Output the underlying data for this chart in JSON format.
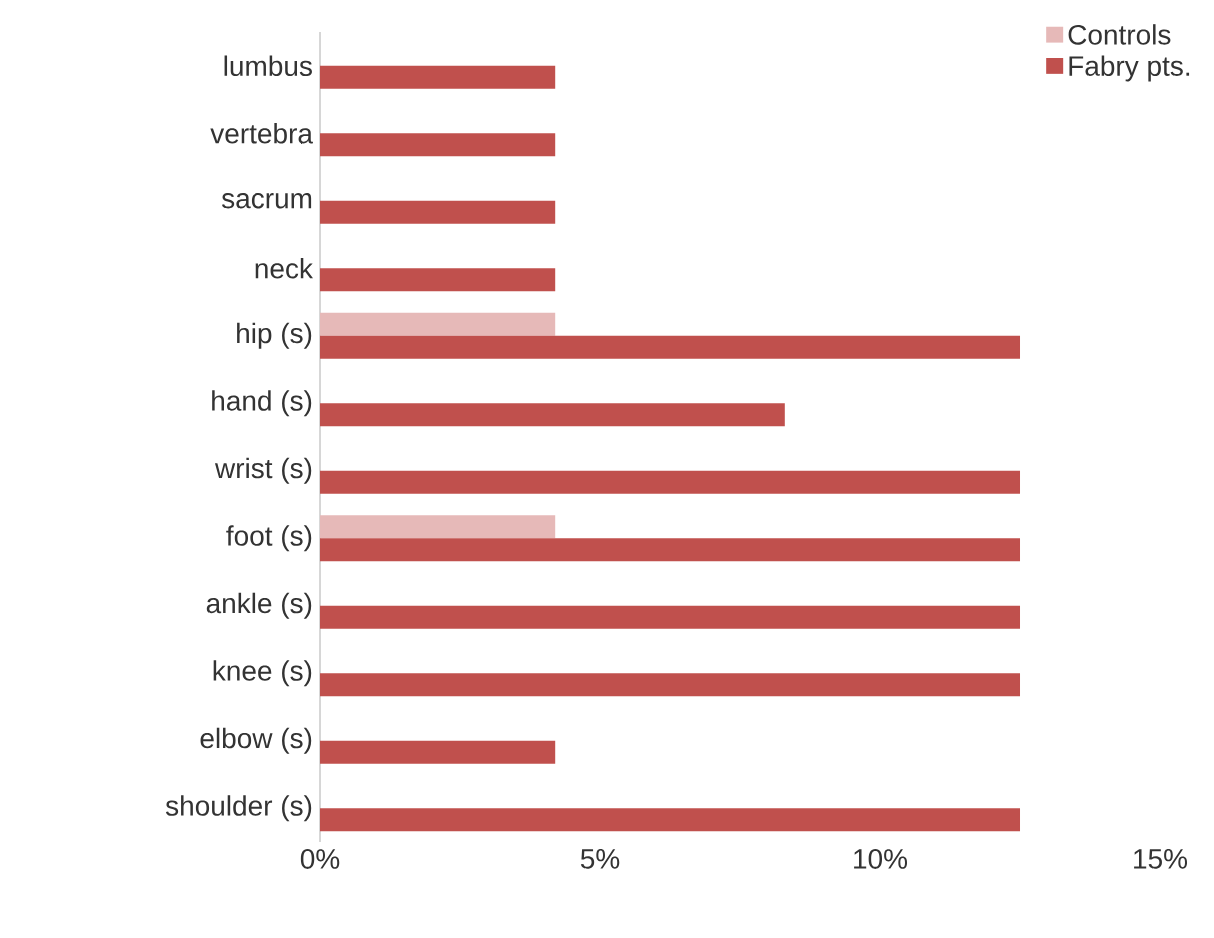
{
  "chart_data": {
    "type": "bar",
    "orientation": "horizontal",
    "categories": [
      "lumbus",
      "vertebra",
      "sacrum",
      "neck",
      "hip (s)",
      "hand (s)",
      "wrist (s)",
      "foot (s)",
      "ankle (s)",
      "knee (s)",
      "elbow (s)",
      "shoulder (s)"
    ],
    "series": [
      {
        "name": "Controls",
        "color": "#e6b9b8",
        "values": [
          null,
          null,
          null,
          null,
          4.2,
          null,
          null,
          4.2,
          null,
          null,
          null,
          null
        ]
      },
      {
        "name": "Fabry pts.",
        "color": "#c0504d",
        "values": [
          4.2,
          4.2,
          4.2,
          4.2,
          12.5,
          8.3,
          12.5,
          12.5,
          12.5,
          12.5,
          4.2,
          12.5
        ]
      }
    ],
    "xlim": [
      0,
      15
    ],
    "xticks": [
      {
        "value": 0,
        "label": "0%"
      },
      {
        "value": 5,
        "label": "5%"
      },
      {
        "value": 10,
        "label": "10%"
      },
      {
        "value": 15,
        "label": "15%"
      }
    ],
    "legend": "top right"
  }
}
